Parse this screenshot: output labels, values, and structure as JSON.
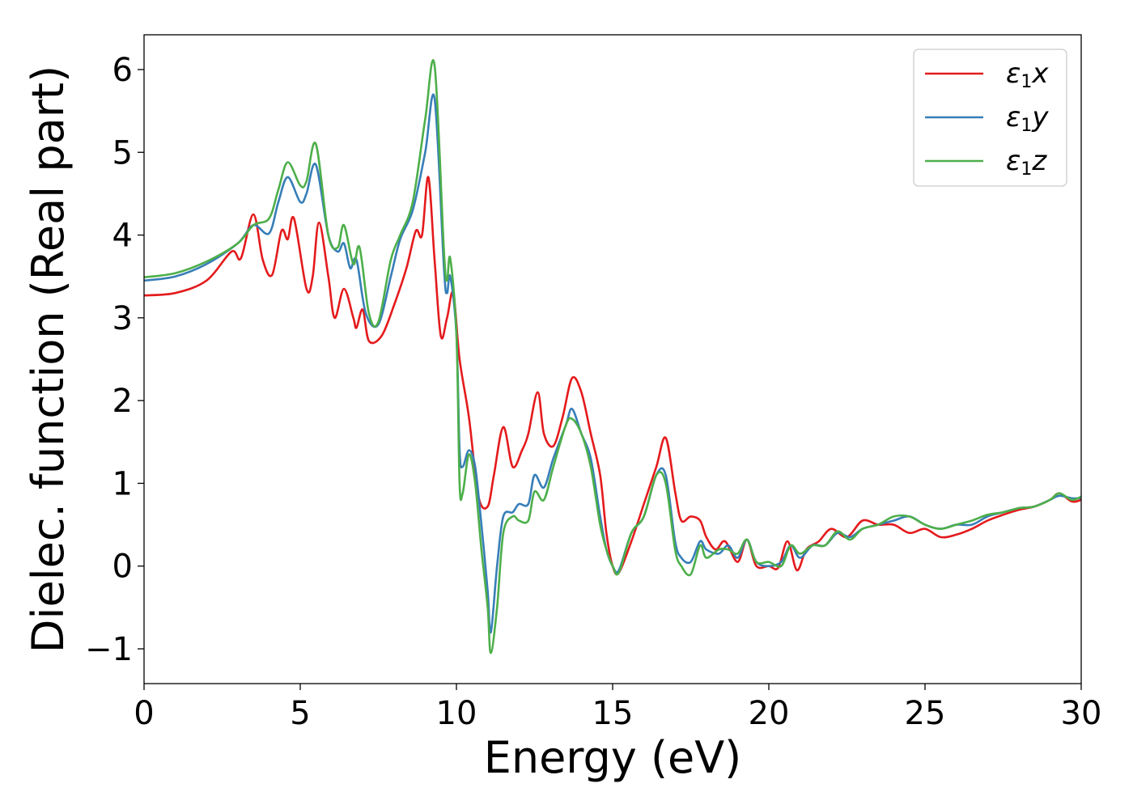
{
  "chart_data": {
    "type": "line",
    "xlabel": "Energy (eV)",
    "ylabel": "Dielec. function (Real part)",
    "xlim": [
      0,
      30
    ],
    "ylim": [
      -1.42,
      6.42
    ],
    "x_ticks": [
      0,
      5,
      10,
      15,
      20,
      25,
      30
    ],
    "y_ticks": [
      -1,
      0,
      1,
      2,
      3,
      4,
      5,
      6
    ],
    "y_tick_labels": [
      "−1",
      "0",
      "1",
      "2",
      "3",
      "4",
      "5",
      "6"
    ],
    "grid": false,
    "legend_position": "top-right",
    "series": [
      {
        "name": "ε1x",
        "legend_symbol": "ε",
        "legend_sub": "1",
        "legend_var": "x",
        "color": "#e41a1c",
        "points": [
          [
            0,
            3.27
          ],
          [
            1,
            3.3
          ],
          [
            2,
            3.45
          ],
          [
            2.8,
            3.8
          ],
          [
            3.1,
            3.72
          ],
          [
            3.5,
            4.25
          ],
          [
            3.8,
            3.7
          ],
          [
            4.1,
            3.52
          ],
          [
            4.4,
            4.05
          ],
          [
            4.6,
            3.95
          ],
          [
            4.8,
            4.2
          ],
          [
            5.2,
            3.35
          ],
          [
            5.4,
            3.5
          ],
          [
            5.6,
            4.15
          ],
          [
            5.9,
            3.5
          ],
          [
            6.1,
            3.0
          ],
          [
            6.4,
            3.35
          ],
          [
            6.7,
            3.0
          ],
          [
            6.8,
            2.88
          ],
          [
            7.0,
            3.1
          ],
          [
            7.2,
            2.72
          ],
          [
            7.6,
            2.78
          ],
          [
            8.0,
            3.15
          ],
          [
            8.4,
            3.6
          ],
          [
            8.7,
            4.05
          ],
          [
            8.9,
            4.0
          ],
          [
            9.1,
            4.7
          ],
          [
            9.3,
            3.7
          ],
          [
            9.5,
            2.78
          ],
          [
            9.7,
            3.0
          ],
          [
            9.9,
            3.3
          ],
          [
            10.1,
            2.5
          ],
          [
            10.4,
            1.8
          ],
          [
            10.7,
            0.85
          ],
          [
            11.0,
            0.72
          ],
          [
            11.2,
            1.1
          ],
          [
            11.5,
            1.68
          ],
          [
            11.8,
            1.2
          ],
          [
            12.1,
            1.4
          ],
          [
            12.3,
            1.6
          ],
          [
            12.6,
            2.1
          ],
          [
            12.8,
            1.6
          ],
          [
            13.1,
            1.45
          ],
          [
            13.4,
            1.8
          ],
          [
            13.7,
            2.27
          ],
          [
            14.0,
            2.1
          ],
          [
            14.3,
            1.6
          ],
          [
            14.6,
            1.1
          ],
          [
            14.8,
            0.4
          ],
          [
            15.0,
            0.0
          ],
          [
            15.2,
            -0.08
          ],
          [
            15.6,
            0.3
          ],
          [
            16.0,
            0.75
          ],
          [
            16.4,
            1.2
          ],
          [
            16.7,
            1.55
          ],
          [
            17.0,
            0.9
          ],
          [
            17.2,
            0.55
          ],
          [
            17.5,
            0.6
          ],
          [
            17.8,
            0.55
          ],
          [
            18.0,
            0.35
          ],
          [
            18.3,
            0.2
          ],
          [
            18.6,
            0.3
          ],
          [
            19.0,
            0.05
          ],
          [
            19.3,
            0.32
          ],
          [
            19.6,
            0.0
          ],
          [
            20.0,
            0.0
          ],
          [
            20.3,
            -0.02
          ],
          [
            20.6,
            0.3
          ],
          [
            20.9,
            -0.05
          ],
          [
            21.2,
            0.2
          ],
          [
            21.6,
            0.3
          ],
          [
            22.0,
            0.45
          ],
          [
            22.5,
            0.35
          ],
          [
            23.0,
            0.55
          ],
          [
            23.5,
            0.5
          ],
          [
            24.0,
            0.5
          ],
          [
            24.5,
            0.4
          ],
          [
            25.0,
            0.45
          ],
          [
            25.5,
            0.35
          ],
          [
            26.0,
            0.38
          ],
          [
            26.5,
            0.45
          ],
          [
            27.0,
            0.55
          ],
          [
            27.5,
            0.62
          ],
          [
            28.0,
            0.68
          ],
          [
            28.5,
            0.72
          ],
          [
            29.0,
            0.8
          ],
          [
            29.3,
            0.88
          ],
          [
            29.7,
            0.78
          ],
          [
            30,
            0.8
          ]
        ]
      },
      {
        "name": "ε1y",
        "legend_symbol": "ε",
        "legend_sub": "1",
        "legend_var": "y",
        "color": "#377eb8",
        "points": [
          [
            0,
            3.45
          ],
          [
            1,
            3.5
          ],
          [
            2,
            3.65
          ],
          [
            3,
            3.9
          ],
          [
            3.5,
            4.12
          ],
          [
            4.0,
            4.02
          ],
          [
            4.3,
            4.4
          ],
          [
            4.6,
            4.7
          ],
          [
            5.0,
            4.4
          ],
          [
            5.2,
            4.5
          ],
          [
            5.5,
            4.85
          ],
          [
            5.9,
            4.0
          ],
          [
            6.2,
            3.8
          ],
          [
            6.4,
            3.9
          ],
          [
            6.6,
            3.6
          ],
          [
            6.8,
            3.7
          ],
          [
            7.1,
            3.05
          ],
          [
            7.5,
            2.92
          ],
          [
            7.9,
            3.5
          ],
          [
            8.2,
            3.95
          ],
          [
            8.6,
            4.3
          ],
          [
            9.0,
            5.0
          ],
          [
            9.3,
            5.65
          ],
          [
            9.6,
            3.6
          ],
          [
            9.7,
            3.3
          ],
          [
            9.8,
            3.5
          ],
          [
            10.0,
            2.8
          ],
          [
            10.1,
            1.4
          ],
          [
            10.2,
            1.2
          ],
          [
            10.4,
            1.4
          ],
          [
            10.6,
            1.2
          ],
          [
            10.8,
            0.5
          ],
          [
            11.0,
            -0.3
          ],
          [
            11.1,
            -0.8
          ],
          [
            11.3,
            0.0
          ],
          [
            11.5,
            0.6
          ],
          [
            11.8,
            0.65
          ],
          [
            12.0,
            0.75
          ],
          [
            12.3,
            0.75
          ],
          [
            12.5,
            1.1
          ],
          [
            12.8,
            0.95
          ],
          [
            13.1,
            1.3
          ],
          [
            13.5,
            1.7
          ],
          [
            13.7,
            1.9
          ],
          [
            14.0,
            1.6
          ],
          [
            14.3,
            1.3
          ],
          [
            14.6,
            0.6
          ],
          [
            14.8,
            0.2
          ],
          [
            15.0,
            0.0
          ],
          [
            15.2,
            -0.05
          ],
          [
            15.6,
            0.4
          ],
          [
            16.0,
            0.6
          ],
          [
            16.4,
            1.1
          ],
          [
            16.7,
            1.1
          ],
          [
            17.0,
            0.3
          ],
          [
            17.2,
            0.1
          ],
          [
            17.5,
            0.05
          ],
          [
            17.8,
            0.3
          ],
          [
            18.0,
            0.2
          ],
          [
            18.4,
            0.15
          ],
          [
            18.7,
            0.25
          ],
          [
            19.0,
            0.1
          ],
          [
            19.3,
            0.32
          ],
          [
            19.6,
            0.05
          ],
          [
            20.0,
            0.0
          ],
          [
            20.4,
            0.05
          ],
          [
            20.7,
            0.25
          ],
          [
            21.0,
            0.1
          ],
          [
            21.4,
            0.25
          ],
          [
            21.8,
            0.25
          ],
          [
            22.2,
            0.4
          ],
          [
            22.6,
            0.35
          ],
          [
            23.0,
            0.45
          ],
          [
            23.5,
            0.5
          ],
          [
            24.0,
            0.55
          ],
          [
            24.5,
            0.6
          ],
          [
            25.0,
            0.5
          ],
          [
            25.5,
            0.45
          ],
          [
            26.0,
            0.5
          ],
          [
            26.5,
            0.5
          ],
          [
            27.0,
            0.6
          ],
          [
            27.5,
            0.65
          ],
          [
            28.0,
            0.7
          ],
          [
            28.5,
            0.72
          ],
          [
            29.0,
            0.8
          ],
          [
            29.3,
            0.85
          ],
          [
            29.7,
            0.82
          ],
          [
            30,
            0.82
          ]
        ]
      },
      {
        "name": "ε1z",
        "legend_symbol": "ε",
        "legend_sub": "1",
        "legend_var": "z",
        "color": "#4daf4a",
        "points": [
          [
            0,
            3.49
          ],
          [
            1,
            3.54
          ],
          [
            2,
            3.68
          ],
          [
            3,
            3.9
          ],
          [
            3.5,
            4.12
          ],
          [
            4.0,
            4.2
          ],
          [
            4.3,
            4.55
          ],
          [
            4.6,
            4.88
          ],
          [
            5.0,
            4.6
          ],
          [
            5.2,
            4.65
          ],
          [
            5.5,
            5.1
          ],
          [
            5.9,
            4.0
          ],
          [
            6.2,
            3.85
          ],
          [
            6.4,
            4.12
          ],
          [
            6.7,
            3.65
          ],
          [
            6.9,
            3.85
          ],
          [
            7.2,
            3.05
          ],
          [
            7.5,
            2.95
          ],
          [
            7.9,
            3.7
          ],
          [
            8.2,
            4.0
          ],
          [
            8.6,
            4.4
          ],
          [
            9.0,
            5.4
          ],
          [
            9.3,
            6.05
          ],
          [
            9.6,
            3.8
          ],
          [
            9.7,
            3.45
          ],
          [
            9.8,
            3.72
          ],
          [
            10.0,
            2.8
          ],
          [
            10.1,
            1.0
          ],
          [
            10.2,
            0.88
          ],
          [
            10.4,
            1.35
          ],
          [
            10.6,
            1.0
          ],
          [
            10.8,
            0.2
          ],
          [
            11.0,
            -0.5
          ],
          [
            11.1,
            -1.05
          ],
          [
            11.3,
            -0.5
          ],
          [
            11.5,
            0.4
          ],
          [
            11.8,
            0.6
          ],
          [
            12.0,
            0.55
          ],
          [
            12.3,
            0.55
          ],
          [
            12.5,
            0.9
          ],
          [
            12.8,
            0.8
          ],
          [
            13.1,
            1.2
          ],
          [
            13.5,
            1.7
          ],
          [
            13.7,
            1.78
          ],
          [
            14.0,
            1.6
          ],
          [
            14.3,
            1.2
          ],
          [
            14.6,
            0.5
          ],
          [
            14.8,
            0.2
          ],
          [
            15.0,
            0.0
          ],
          [
            15.2,
            -0.08
          ],
          [
            15.6,
            0.4
          ],
          [
            16.0,
            0.6
          ],
          [
            16.4,
            1.1
          ],
          [
            16.7,
            1.0
          ],
          [
            17.0,
            0.2
          ],
          [
            17.2,
            0.0
          ],
          [
            17.5,
            -0.1
          ],
          [
            17.8,
            0.25
          ],
          [
            18.0,
            0.1
          ],
          [
            18.4,
            0.2
          ],
          [
            18.7,
            0.2
          ],
          [
            19.0,
            0.15
          ],
          [
            19.3,
            0.32
          ],
          [
            19.6,
            0.05
          ],
          [
            20.0,
            0.05
          ],
          [
            20.4,
            0.0
          ],
          [
            20.7,
            0.25
          ],
          [
            21.0,
            0.15
          ],
          [
            21.4,
            0.25
          ],
          [
            21.8,
            0.25
          ],
          [
            22.2,
            0.42
          ],
          [
            22.6,
            0.32
          ],
          [
            23.0,
            0.45
          ],
          [
            23.5,
            0.5
          ],
          [
            24.0,
            0.6
          ],
          [
            24.5,
            0.6
          ],
          [
            25.0,
            0.5
          ],
          [
            25.5,
            0.45
          ],
          [
            26.0,
            0.5
          ],
          [
            26.5,
            0.55
          ],
          [
            27.0,
            0.62
          ],
          [
            27.5,
            0.65
          ],
          [
            28.0,
            0.7
          ],
          [
            28.5,
            0.72
          ],
          [
            29.0,
            0.8
          ],
          [
            29.3,
            0.88
          ],
          [
            29.7,
            0.8
          ],
          [
            30,
            0.84
          ]
        ]
      }
    ]
  }
}
